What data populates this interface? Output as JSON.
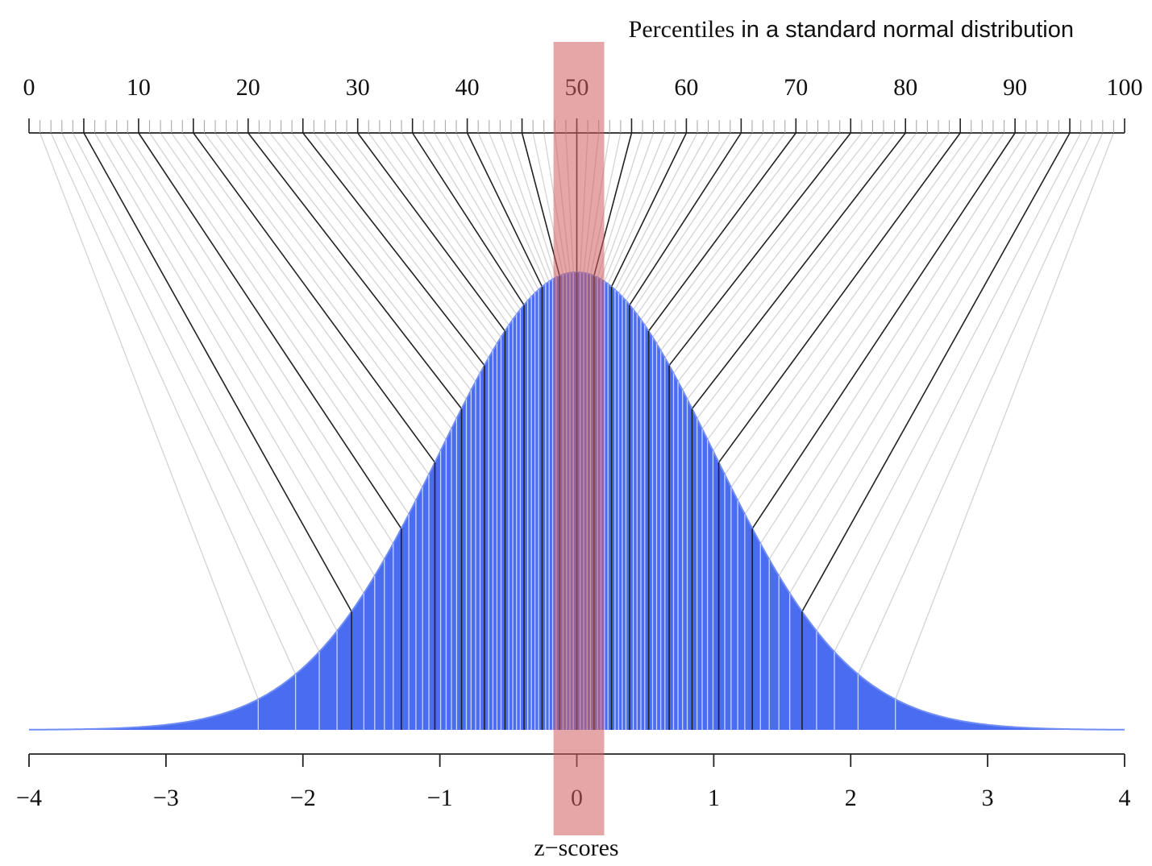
{
  "chart_data": {
    "type": "area",
    "title_part1": "Percentiles",
    "title_part2": " in a standard normal distribution",
    "xlabel": "z−scores",
    "top_axis": {
      "range": [
        0,
        100
      ],
      "major_ticks": [
        0,
        10,
        20,
        30,
        40,
        50,
        60,
        70,
        80,
        90,
        100
      ],
      "major_tick_labels": [
        "0",
        "10",
        "20",
        "30",
        "40",
        "50",
        "60",
        "70",
        "80",
        "90",
        "100"
      ],
      "minor_tick_step": 1
    },
    "bottom_axis": {
      "range": [
        -4,
        4
      ],
      "ticks": [
        -4,
        -3,
        -2,
        -1,
        0,
        1,
        2,
        3,
        4
      ],
      "tick_labels": [
        "−4",
        "−3",
        "−2",
        "−1",
        "0",
        "1",
        "2",
        "3",
        "4"
      ]
    },
    "distribution": "standard normal",
    "percentile_lines": {
      "percentiles": [
        1,
        2,
        3,
        4,
        5,
        6,
        7,
        8,
        9,
        10,
        11,
        12,
        13,
        14,
        15,
        16,
        17,
        18,
        19,
        20,
        21,
        22,
        23,
        24,
        25,
        26,
        27,
        28,
        29,
        30,
        31,
        32,
        33,
        34,
        35,
        36,
        37,
        38,
        39,
        40,
        41,
        42,
        43,
        44,
        45,
        46,
        47,
        48,
        49,
        50,
        51,
        52,
        53,
        54,
        55,
        56,
        57,
        58,
        59,
        60,
        61,
        62,
        63,
        64,
        65,
        66,
        67,
        68,
        69,
        70,
        71,
        72,
        73,
        74,
        75,
        76,
        77,
        78,
        79,
        80,
        81,
        82,
        83,
        84,
        85,
        86,
        87,
        88,
        89,
        90,
        91,
        92,
        93,
        94,
        95,
        96,
        97,
        98,
        99
      ],
      "highlighted_every": 5
    },
    "highlight_band": {
      "z_range": [
        -0.17,
        0.2
      ],
      "color": "#cd5c5c",
      "opacity": 0.55
    },
    "colors": {
      "fill": "#4a6cf0",
      "curve": "#6f8df5",
      "major_line": "#222222",
      "minor_line": "#d3d3d3",
      "minor_line_in_fill": "#c6d2ff"
    }
  }
}
